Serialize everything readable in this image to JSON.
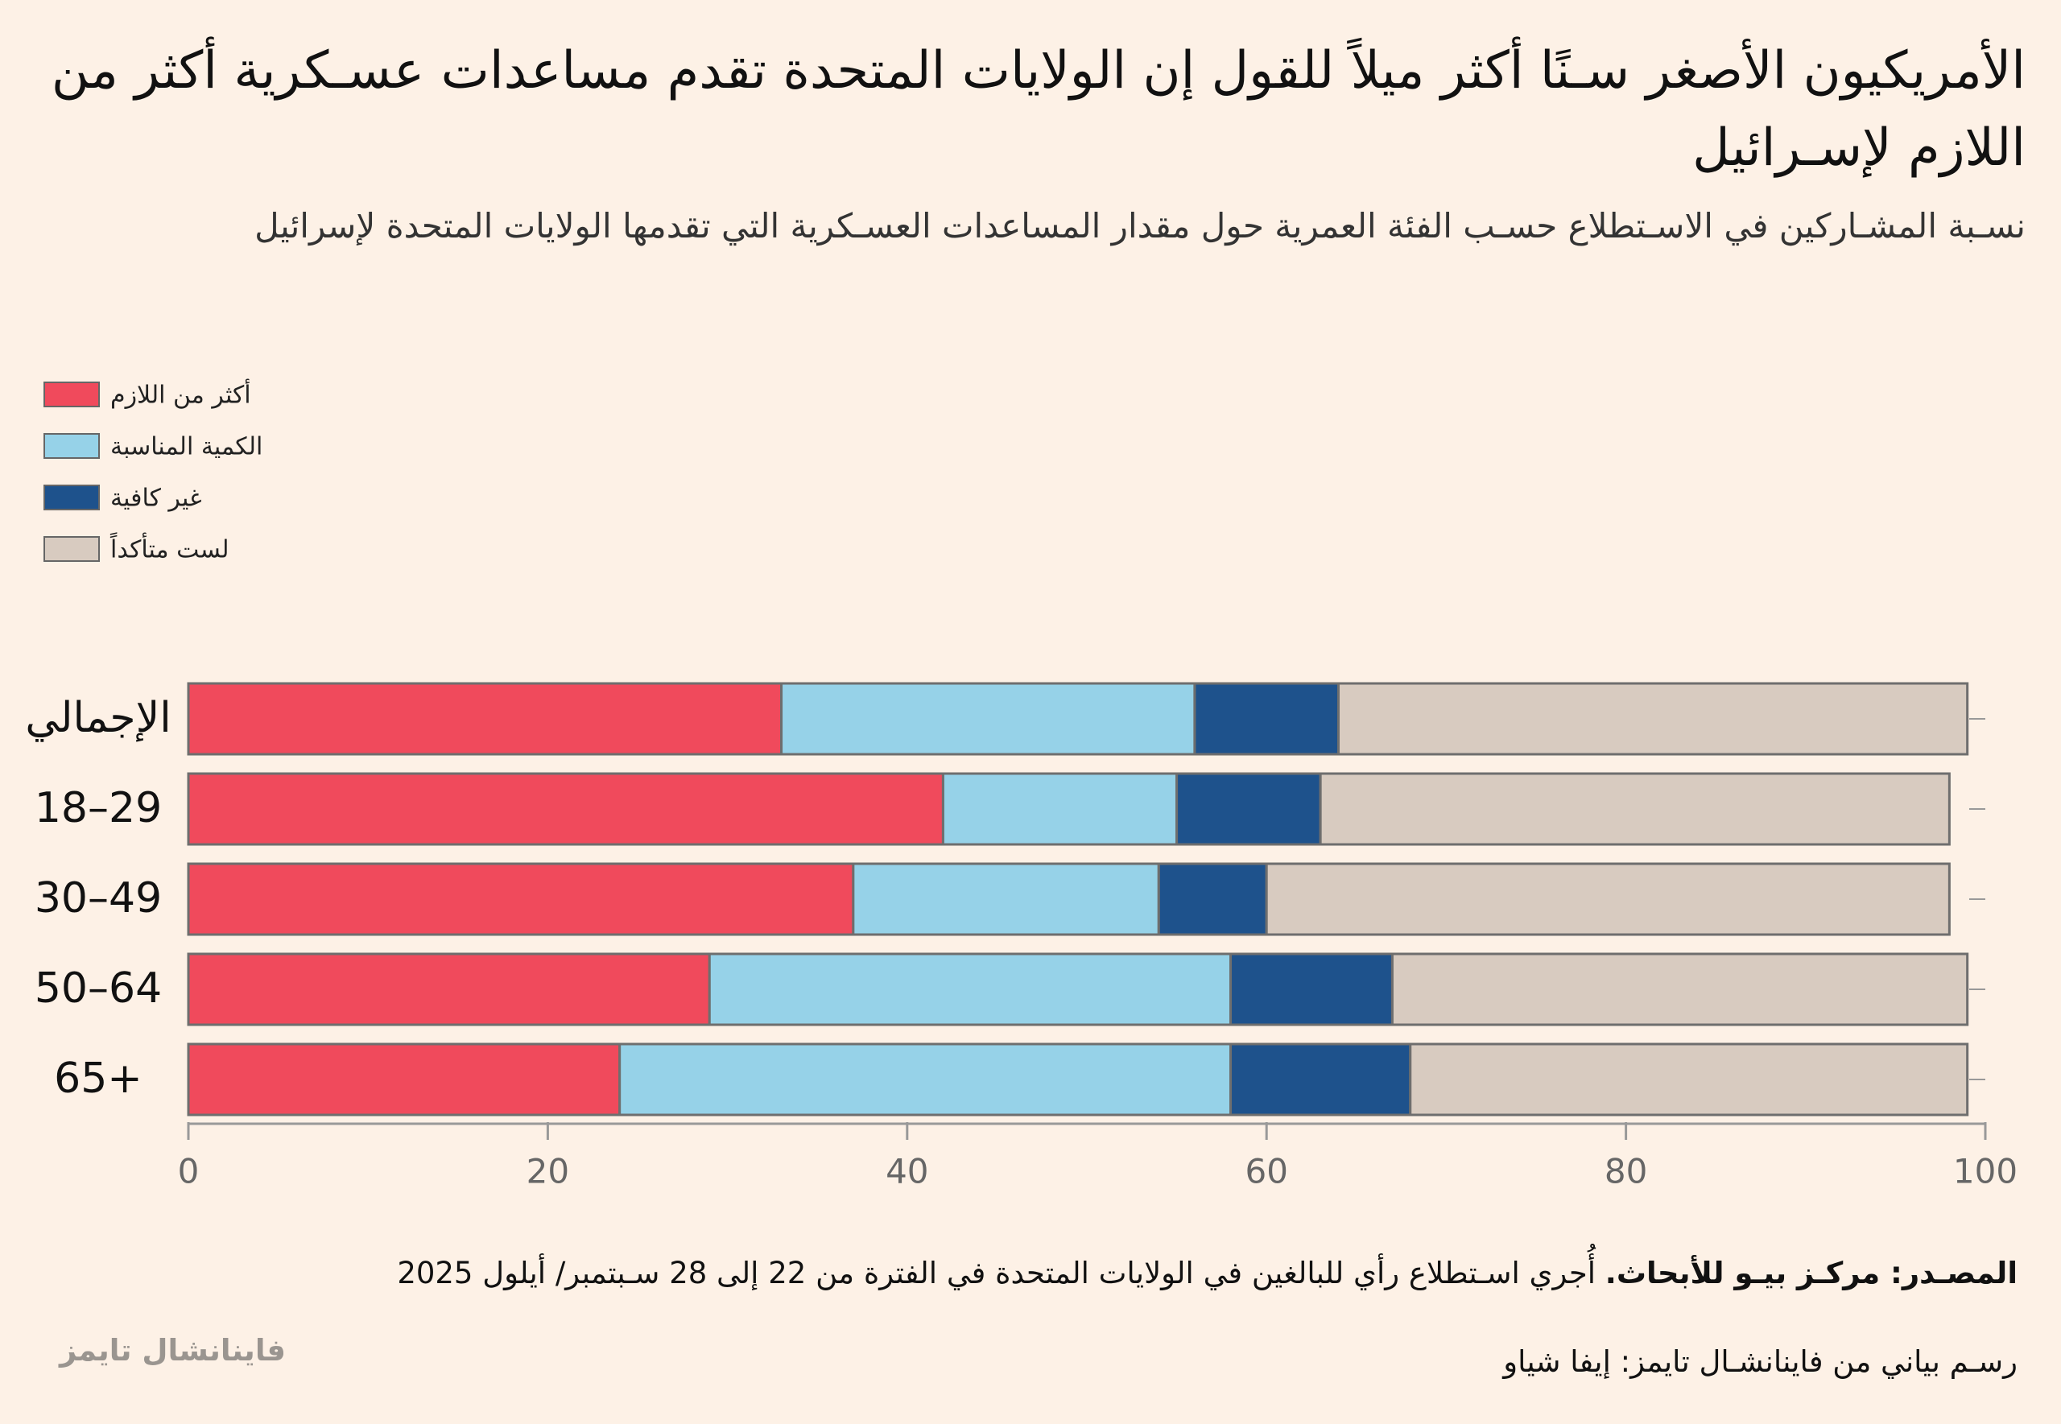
{
  "chart_data": {
    "type": "stacked-bar-horizontal",
    "title": "الأمريكيون الأصغر سـنًا أكثر ميلاً للقول إن الولايات المتحدة تقدم مساعدات عسـكرية أكثر من اللازم لإسـرائيل",
    "subtitle": "نسـبة المشـاركين في الاسـتطلاع حسـب الفئة العمرية حول مقدار المساعدات العسـكرية التي تقدمها الولايات المتحدة لإسرائيل",
    "categories": [
      "الإجمالي",
      "18–29",
      "30–49",
      "50–64",
      "65+"
    ],
    "series": [
      {
        "name": "أكثر من اللازم",
        "color": "#f04a5c",
        "values": [
          33,
          42,
          37,
          29,
          24
        ]
      },
      {
        "name": "الكمية المناسبة",
        "color": "#96d2e8",
        "values": [
          23,
          13,
          17,
          29,
          34
        ]
      },
      {
        "name": "غير كافية",
        "color": "#1e528c",
        "values": [
          8,
          8,
          6,
          9,
          10
        ]
      },
      {
        "name": "لست متأكداً",
        "color": "#d8cbc0",
        "values": [
          35,
          35,
          38,
          32,
          31
        ]
      }
    ],
    "xlim": [
      0,
      100
    ],
    "xticks": [
      0,
      20,
      40,
      60,
      80,
      100
    ],
    "legend": "top-left",
    "source": {
      "label": "المصـدر: مركـز بيـو للأبحاث.",
      "text": "أُجري اسـتطلاع رأي للبالغين في الولايات المتحدة في الفترة من 22 إلى 28 سـبتمبر/ أيلول 2025"
    },
    "credit": "رسـم بياني من فاينانشـال تايمز: إيفا شياو",
    "logo": "فاينانشال تايمز"
  }
}
